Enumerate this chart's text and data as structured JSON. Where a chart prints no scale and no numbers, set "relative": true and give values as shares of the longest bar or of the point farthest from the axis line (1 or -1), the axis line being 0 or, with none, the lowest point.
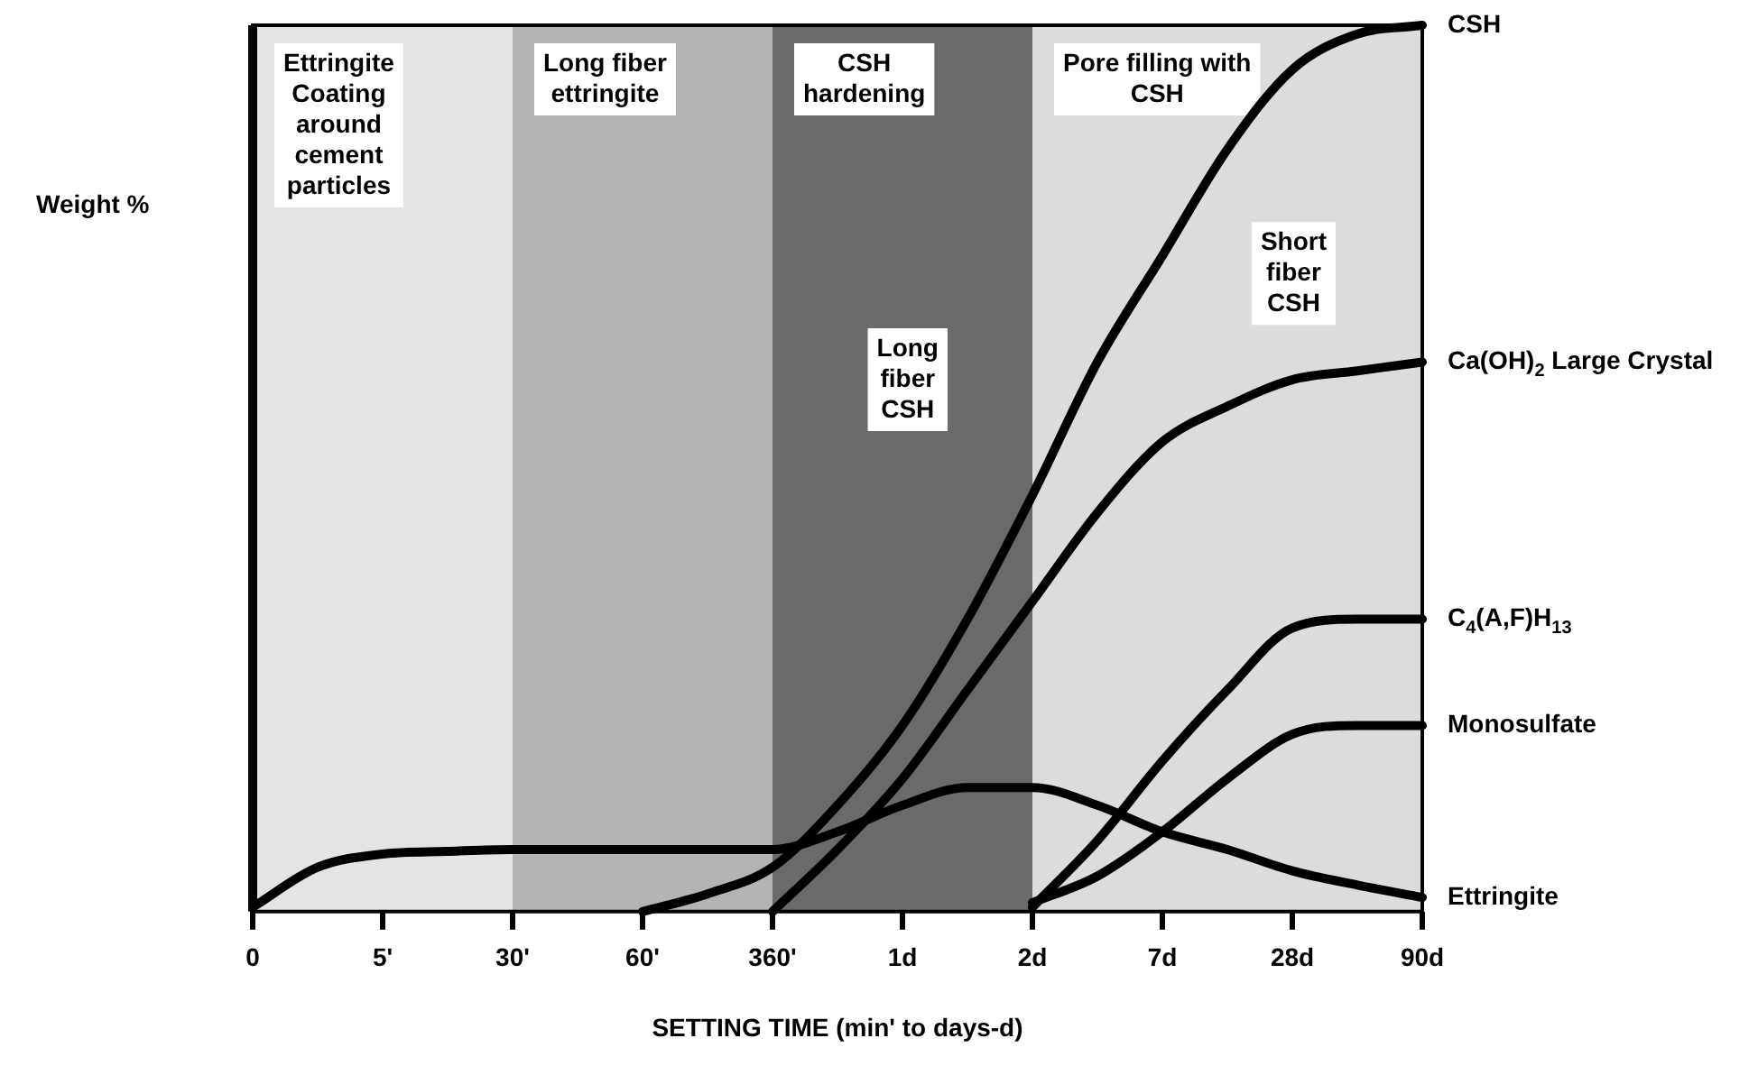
{
  "chart_data": {
    "type": "line",
    "relative": true,
    "xlabel": "SETTING TIME (min' to days-d)",
    "ylabel": "Weight %",
    "categories": [
      "0",
      null,
      "5'",
      null,
      "30'",
      null,
      "60'",
      null,
      "360'",
      null,
      "1d",
      null,
      "2d",
      null,
      "7d",
      null,
      "28d",
      null,
      "90d"
    ],
    "series": [
      {
        "name": "CSH",
        "color": "#000000",
        "values": [
          null,
          null,
          null,
          null,
          null,
          null,
          0,
          0.02,
          0.05,
          0.12,
          0.21,
          0.33,
          0.47,
          0.62,
          0.74,
          0.86,
          0.95,
          0.99,
          1
        ]
      },
      {
        "name": "Ca(OH)$_{2}$ Large Crystal",
        "color": "#000000",
        "values": [
          null,
          null,
          null,
          null,
          null,
          null,
          null,
          null,
          0,
          0.07,
          0.15,
          0.25,
          0.35,
          0.45,
          0.53,
          0.57,
          0.6,
          0.61,
          0.62
        ]
      },
      {
        "name": "C$_{4}$(A,F)H$_{13}$",
        "color": "#000000",
        "values": [
          null,
          null,
          null,
          null,
          null,
          null,
          null,
          null,
          null,
          null,
          null,
          null,
          0.005,
          0.08,
          0.17,
          0.25,
          0.32,
          0.33,
          0.33
        ]
      },
      {
        "name": "Monosulfate",
        "color": "#000000",
        "values": [
          null,
          null,
          null,
          null,
          null,
          null,
          null,
          null,
          null,
          null,
          null,
          null,
          0.01,
          0.04,
          0.09,
          0.15,
          0.2,
          0.21,
          0.21
        ]
      },
      {
        "name": "Ettringite",
        "color": "#000000",
        "values": [
          0.005,
          0.05,
          0.065,
          0.068,
          0.07,
          0.07,
          0.07,
          0.07,
          0.07,
          0.09,
          0.12,
          0.14,
          0.14,
          0.12,
          0.09,
          0.07,
          0.046,
          0.03,
          0.016
        ]
      }
    ],
    "bands": [
      {
        "axis": "x",
        "from": "0",
        "to": "30'",
        "label": "Ettringite Coating around cement particles",
        "color": "#e4e4e4"
      },
      {
        "axis": "x",
        "from": "30'",
        "to": "360'",
        "label": "Long fiber ettringite",
        "color": "#b4b4b4"
      },
      {
        "axis": "x",
        "from": "360'",
        "to": "2d",
        "label": "CSH hardening",
        "color": "#6a6a6a"
      },
      {
        "axis": "x",
        "from": "2d",
        "to": "90d",
        "label": "Pore filling with CSH",
        "color": "#dcdcdc"
      }
    ],
    "annotations": [
      "Long fiber CSH",
      "Short fiber CSH"
    ],
    "marker": "none",
    "line_style": "solid",
    "legend": "right",
    "tick_labels": "x"
  }
}
